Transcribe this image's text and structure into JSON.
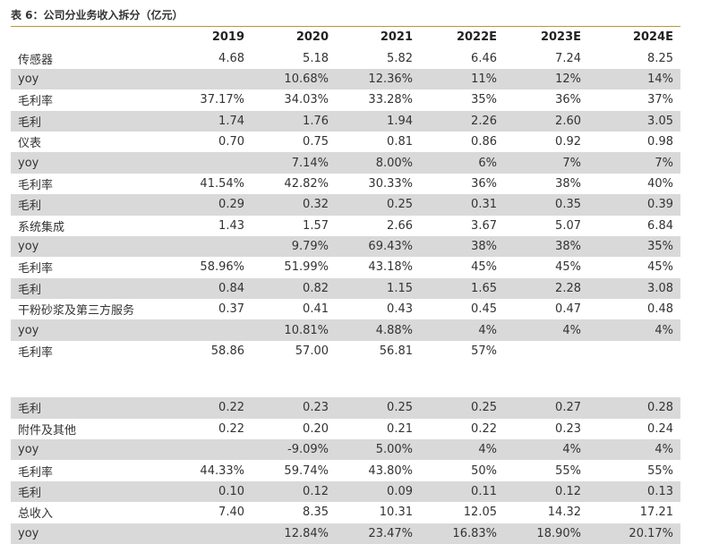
{
  "table": {
    "title": "表 6：公司分业务收入拆分（亿元）",
    "headers": [
      "2019",
      "2020",
      "2021",
      "2022E",
      "2023E",
      "2024E"
    ],
    "rows": [
      [
        "传感器",
        "4.68",
        "5.18",
        "5.82",
        "6.46",
        "7.24",
        "8.25"
      ],
      [
        "yoy",
        null,
        "10.68%",
        "12.36%",
        "11%",
        "12%",
        "14%"
      ],
      [
        "毛利率",
        "37.17%",
        "34.03%",
        "33.28%",
        "35%",
        "36%",
        "37%"
      ],
      [
        "毛利",
        "1.74",
        "1.76",
        "1.94",
        "2.26",
        "2.60",
        "3.05"
      ],
      [
        "仪表",
        "0.70",
        "0.75",
        "0.81",
        "0.86",
        "0.92",
        "0.98"
      ],
      [
        "yoy",
        null,
        "7.14%",
        "8.00%",
        "6%",
        "7%",
        "7%"
      ],
      [
        "毛利率",
        "41.54%",
        "42.82%",
        "30.33%",
        "36%",
        "38%",
        "40%"
      ],
      [
        "毛利",
        "0.29",
        "0.32",
        "0.25",
        "0.31",
        "0.35",
        "0.39"
      ],
      [
        "系统集成",
        "1.43",
        "1.57",
        "2.66",
        "3.67",
        "5.07",
        "6.84"
      ],
      [
        "yoy",
        null,
        "9.79%",
        "69.43%",
        "38%",
        "38%",
        "35%"
      ],
      [
        "毛利率",
        "58.96%",
        "51.99%",
        "43.18%",
        "45%",
        "45%",
        "45%"
      ],
      [
        "毛利",
        "0.84",
        "0.82",
        "1.15",
        "1.65",
        "2.28",
        "3.08"
      ],
      [
        "干粉砂浆及第三方服务",
        "0.37",
        "0.41",
        "0.43",
        "0.45",
        "0.47",
        "0.48"
      ],
      [
        "yoy",
        null,
        "10.81%",
        "4.88%",
        "4%",
        "4%",
        "4%"
      ],
      [
        "毛利率",
        "58.86",
        "57.00",
        "56.81",
        "57%",
        null,
        null
      ],
      [
        "毛利",
        "0.22",
        "0.23",
        "0.25",
        "0.25",
        "0.27",
        "0.28"
      ],
      [
        "附件及其他",
        "0.22",
        "0.20",
        "0.21",
        "0.22",
        "0.23",
        "0.24"
      ],
      [
        "yoy",
        null,
        "-9.09%",
        "5.00%",
        "4%",
        "4%",
        "4%"
      ],
      [
        "毛利率",
        "44.33%",
        "59.74%",
        "43.80%",
        "50%",
        "55%",
        "55%"
      ],
      [
        "毛利",
        "0.10",
        "0.12",
        "0.09",
        "0.11",
        "0.12",
        "0.13"
      ],
      [
        "总收入",
        "7.40",
        "8.35",
        "10.31",
        "12.05",
        "14.32",
        "17.21"
      ],
      [
        "yoy",
        null,
        "12.84%",
        "23.47%",
        "16.83%",
        "18.90%",
        "20.17%"
      ]
    ]
  }
}
